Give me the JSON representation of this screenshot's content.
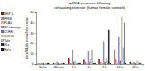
{
  "chart_data": {
    "type": "bar",
    "title": "mRNA increases following",
    "subtitle": "exhausting exercise (human female controls)",
    "y_label": "ratio mRNA after exercise/before exercise",
    "categories": [
      "Before",
      "0 Minutes",
      "4 hr",
      "6 hr",
      "8 hr",
      "24 hr",
      "48 hr"
    ],
    "series": [
      {
        "name": "MKP-1",
        "color": "#8B1A1A",
        "values": [
          1,
          1,
          6,
          4,
          5,
          14,
          2
        ]
      },
      {
        "name": "PFKB",
        "color": "#E87070",
        "values": [
          1,
          1,
          1,
          2,
          2,
          4,
          1
        ]
      },
      {
        "name": "PLAU",
        "color": "#F4A0A0",
        "values": [
          1,
          1,
          1,
          1,
          1,
          1,
          1
        ]
      },
      {
        "name": "B4 adrenergic",
        "color": "#9090BB",
        "values": [
          1,
          2,
          14,
          12,
          22,
          26,
          2
        ]
      },
      {
        "name": "CORE5",
        "color": "#6666AA",
        "values": [
          1,
          1,
          2,
          2,
          2,
          3,
          1
        ]
      },
      {
        "name": "COV-14",
        "color": "#C8C8A0",
        "values": [
          1,
          1,
          3,
          5,
          6,
          46,
          3
        ]
      },
      {
        "name": "Talin",
        "color": "#B0B0B0",
        "values": [
          1,
          1,
          1,
          14,
          3,
          16,
          2
        ]
      },
      {
        "name": "ELx",
        "color": "#2B2B5A",
        "values": [
          1,
          1,
          1,
          1,
          33,
          40,
          1
        ]
      },
      {
        "name": "Ref x",
        "color": "#1A1A3A",
        "values": [
          1,
          1,
          1,
          1,
          1,
          1,
          1
        ]
      }
    ],
    "ylim": [
      0,
      50
    ],
    "yticks": [
      0,
      10,
      20,
      30,
      40,
      50
    ],
    "grid": false,
    "legend": "left"
  }
}
